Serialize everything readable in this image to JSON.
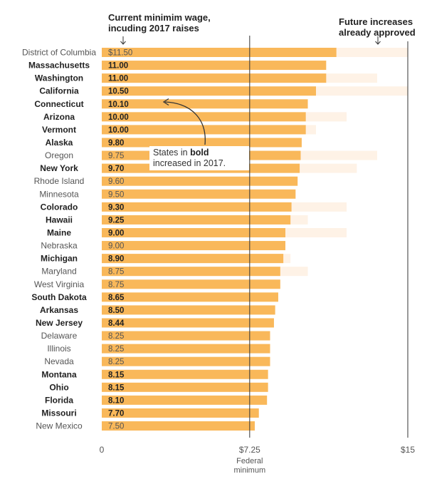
{
  "chart_data": {
    "type": "bar",
    "notes": {
      "current": [
        "Current minimim wage,",
        "incuding 2017 raises"
      ],
      "future": [
        "Future increases",
        "already approved"
      ]
    },
    "annotation": {
      "pre": "States in ",
      "bold": "bold",
      "post": "increased in 2017."
    },
    "x_ticks": [
      {
        "value": 0,
        "label": "0"
      },
      {
        "value": 7.25,
        "label": "$7.25"
      },
      {
        "value": 15,
        "label": "$15"
      }
    ],
    "federal_labels": [
      "Federal",
      "minimum"
    ],
    "xlim": [
      0,
      15
    ],
    "colors": {
      "current": "#f9b85a",
      "future": "#fef2e6",
      "axis": "#333333"
    },
    "rows": [
      {
        "state": "District of Columbia",
        "value": 11.5,
        "label": "$11.50",
        "bold": false,
        "future": 15
      },
      {
        "state": "Massachusetts",
        "value": 11.0,
        "label": "11.00",
        "bold": true,
        "future": null
      },
      {
        "state": "Washington",
        "value": 11.0,
        "label": "11.00",
        "bold": true,
        "future": 13.5
      },
      {
        "state": "California",
        "value": 10.5,
        "label": "10.50",
        "bold": true,
        "future": 15
      },
      {
        "state": "Connecticut",
        "value": 10.1,
        "label": "10.10",
        "bold": true,
        "future": null
      },
      {
        "state": "Arizona",
        "value": 10.0,
        "label": "10.00",
        "bold": true,
        "future": 12
      },
      {
        "state": "Vermont",
        "value": 10.0,
        "label": "10.00",
        "bold": true,
        "future": 10.5
      },
      {
        "state": "Alaska",
        "value": 9.8,
        "label": "9.80",
        "bold": true,
        "future": null
      },
      {
        "state": "Oregon",
        "value": 9.75,
        "label": "9.75",
        "bold": false,
        "future": 13.5
      },
      {
        "state": "New York",
        "value": 9.7,
        "label": "9.70",
        "bold": true,
        "future": 12.5
      },
      {
        "state": "Rhode Island",
        "value": 9.6,
        "label": "9.60",
        "bold": false,
        "future": null
      },
      {
        "state": "Minnesota",
        "value": 9.5,
        "label": "9.50",
        "bold": false,
        "future": null
      },
      {
        "state": "Colorado",
        "value": 9.3,
        "label": "9.30",
        "bold": true,
        "future": 12
      },
      {
        "state": "Hawaii",
        "value": 9.25,
        "label": "9.25",
        "bold": true,
        "future": 10.1
      },
      {
        "state": "Maine",
        "value": 9.0,
        "label": "9.00",
        "bold": true,
        "future": 12
      },
      {
        "state": "Nebraska",
        "value": 9.0,
        "label": "9.00",
        "bold": false,
        "future": null
      },
      {
        "state": "Michigan",
        "value": 8.9,
        "label": "8.90",
        "bold": true,
        "future": 9.25
      },
      {
        "state": "Maryland",
        "value": 8.75,
        "label": "8.75",
        "bold": false,
        "future": 10.1
      },
      {
        "state": "West Virginia",
        "value": 8.75,
        "label": "8.75",
        "bold": false,
        "future": null
      },
      {
        "state": "South Dakota",
        "value": 8.65,
        "label": "8.65",
        "bold": true,
        "future": null
      },
      {
        "state": "Arkansas",
        "value": 8.5,
        "label": "8.50",
        "bold": true,
        "future": null
      },
      {
        "state": "New Jersey",
        "value": 8.44,
        "label": "8.44",
        "bold": true,
        "future": null
      },
      {
        "state": "Delaware",
        "value": 8.25,
        "label": "8.25",
        "bold": false,
        "future": null
      },
      {
        "state": "Illinois",
        "value": 8.25,
        "label": "8.25",
        "bold": false,
        "future": null
      },
      {
        "state": "Nevada",
        "value": 8.25,
        "label": "8.25",
        "bold": false,
        "future": null
      },
      {
        "state": "Montana",
        "value": 8.15,
        "label": "8.15",
        "bold": true,
        "future": null
      },
      {
        "state": "Ohio",
        "value": 8.15,
        "label": "8.15",
        "bold": true,
        "future": null
      },
      {
        "state": "Florida",
        "value": 8.1,
        "label": "8.10",
        "bold": true,
        "future": null
      },
      {
        "state": "Missouri",
        "value": 7.7,
        "label": "7.70",
        "bold": true,
        "future": null
      },
      {
        "state": "New Mexico",
        "value": 7.5,
        "label": "7.50",
        "bold": false,
        "future": null
      }
    ]
  }
}
